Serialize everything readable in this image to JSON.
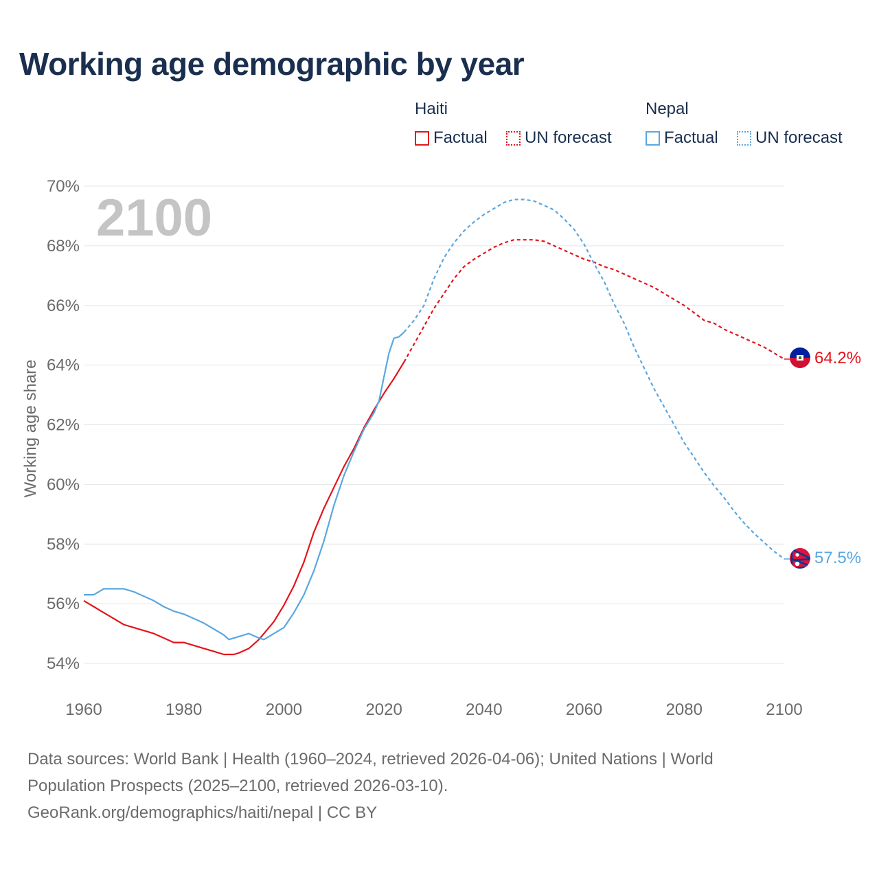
{
  "title": "Working age demographic by year",
  "legend": {
    "groups": [
      {
        "name": "Haiti",
        "factual_label": "Factual",
        "forecast_label": "UN forecast",
        "color": "#e3141b"
      },
      {
        "name": "Nepal",
        "factual_label": "Factual",
        "forecast_label": "UN forecast",
        "color": "#5aa7e0"
      }
    ]
  },
  "year_watermark": "2100",
  "footer": {
    "line1": "Data sources: World Bank | Health (1960–2024, retrieved 2026-04-06); United Nations | World",
    "line2": "Population Prospects (2025–2100, retrieved 2026-03-10).",
    "line3": "GeoRank.org/demographics/haiti/nepal | CC BY"
  },
  "chart_data": {
    "type": "line",
    "title": "Working age demographic by year",
    "xlabel": "",
    "ylabel": "Working age share",
    "xlim": [
      1960,
      2100
    ],
    "ylim": [
      54,
      70
    ],
    "x_ticks": [
      1960,
      1980,
      2000,
      2020,
      2040,
      2060,
      2080,
      2100
    ],
    "y_ticks": [
      54,
      56,
      58,
      60,
      62,
      64,
      66,
      68,
      70
    ],
    "y_tick_suffix": "%",
    "grid": true,
    "forecast_start_year": 2024,
    "series": [
      {
        "name": "Haiti",
        "color": "#e3141b",
        "end_label": "64.2%",
        "flag": "haiti-flag",
        "points": [
          [
            1960,
            56.1
          ],
          [
            1962,
            55.9
          ],
          [
            1964,
            55.7
          ],
          [
            1966,
            55.5
          ],
          [
            1968,
            55.3
          ],
          [
            1970,
            55.2
          ],
          [
            1972,
            55.1
          ],
          [
            1974,
            55.0
          ],
          [
            1976,
            54.85
          ],
          [
            1978,
            54.7
          ],
          [
            1980,
            54.7
          ],
          [
            1982,
            54.6
          ],
          [
            1984,
            54.5
          ],
          [
            1986,
            54.4
          ],
          [
            1988,
            54.3
          ],
          [
            1990,
            54.3
          ],
          [
            1991,
            54.35
          ],
          [
            1993,
            54.5
          ],
          [
            1995,
            54.8
          ],
          [
            1998,
            55.4
          ],
          [
            2000,
            55.95
          ],
          [
            2002,
            56.6
          ],
          [
            2004,
            57.4
          ],
          [
            2006,
            58.4
          ],
          [
            2008,
            59.2
          ],
          [
            2010,
            59.9
          ],
          [
            2012,
            60.6
          ],
          [
            2014,
            61.2
          ],
          [
            2016,
            61.9
          ],
          [
            2018,
            62.5
          ],
          [
            2020,
            63.05
          ],
          [
            2022,
            63.55
          ],
          [
            2024,
            64.1
          ],
          [
            2026,
            64.7
          ],
          [
            2028,
            65.3
          ],
          [
            2030,
            65.9
          ],
          [
            2032,
            66.4
          ],
          [
            2034,
            66.9
          ],
          [
            2036,
            67.3
          ],
          [
            2038,
            67.55
          ],
          [
            2040,
            67.75
          ],
          [
            2042,
            67.95
          ],
          [
            2044,
            68.1
          ],
          [
            2046,
            68.2
          ],
          [
            2048,
            68.2
          ],
          [
            2050,
            68.2
          ],
          [
            2052,
            68.15
          ],
          [
            2054,
            68.0
          ],
          [
            2056,
            67.85
          ],
          [
            2058,
            67.7
          ],
          [
            2060,
            67.55
          ],
          [
            2062,
            67.45
          ],
          [
            2064,
            67.3
          ],
          [
            2066,
            67.2
          ],
          [
            2068,
            67.05
          ],
          [
            2070,
            66.9
          ],
          [
            2072,
            66.75
          ],
          [
            2074,
            66.6
          ],
          [
            2076,
            66.4
          ],
          [
            2078,
            66.2
          ],
          [
            2080,
            66.0
          ],
          [
            2082,
            65.75
          ],
          [
            2084,
            65.5
          ],
          [
            2086,
            65.4
          ],
          [
            2088,
            65.2
          ],
          [
            2090,
            65.05
          ],
          [
            2092,
            64.9
          ],
          [
            2094,
            64.75
          ],
          [
            2096,
            64.6
          ],
          [
            2098,
            64.4
          ],
          [
            2100,
            64.2
          ]
        ]
      },
      {
        "name": "Nepal",
        "color": "#5aa7e0",
        "end_label": "57.5%",
        "flag": "nepal-flag",
        "points": [
          [
            1960,
            56.3
          ],
          [
            1962,
            56.3
          ],
          [
            1964,
            56.5
          ],
          [
            1966,
            56.5
          ],
          [
            1968,
            56.5
          ],
          [
            1970,
            56.4
          ],
          [
            1972,
            56.25
          ],
          [
            1974,
            56.1
          ],
          [
            1976,
            55.9
          ],
          [
            1978,
            55.75
          ],
          [
            1980,
            55.65
          ],
          [
            1982,
            55.5
          ],
          [
            1984,
            55.35
          ],
          [
            1986,
            55.15
          ],
          [
            1988,
            54.95
          ],
          [
            1989,
            54.8
          ],
          [
            1991,
            54.9
          ],
          [
            1993,
            55.0
          ],
          [
            1995,
            54.85
          ],
          [
            1996,
            54.8
          ],
          [
            1998,
            55.0
          ],
          [
            2000,
            55.2
          ],
          [
            2002,
            55.7
          ],
          [
            2004,
            56.3
          ],
          [
            2006,
            57.1
          ],
          [
            2008,
            58.1
          ],
          [
            2010,
            59.3
          ],
          [
            2012,
            60.3
          ],
          [
            2014,
            61.1
          ],
          [
            2016,
            61.85
          ],
          [
            2018,
            62.4
          ],
          [
            2019,
            62.8
          ],
          [
            2020,
            63.6
          ],
          [
            2021,
            64.4
          ],
          [
            2022,
            64.9
          ],
          [
            2023,
            64.95
          ],
          [
            2024,
            65.1
          ],
          [
            2026,
            65.5
          ],
          [
            2028,
            66.0
          ],
          [
            2030,
            66.9
          ],
          [
            2032,
            67.6
          ],
          [
            2034,
            68.1
          ],
          [
            2036,
            68.5
          ],
          [
            2038,
            68.8
          ],
          [
            2040,
            69.05
          ],
          [
            2042,
            69.25
          ],
          [
            2044,
            69.45
          ],
          [
            2046,
            69.55
          ],
          [
            2048,
            69.55
          ],
          [
            2050,
            69.5
          ],
          [
            2052,
            69.35
          ],
          [
            2054,
            69.2
          ],
          [
            2056,
            68.9
          ],
          [
            2058,
            68.55
          ],
          [
            2060,
            68.05
          ],
          [
            2062,
            67.4
          ],
          [
            2064,
            66.8
          ],
          [
            2066,
            66.05
          ],
          [
            2068,
            65.4
          ],
          [
            2070,
            64.6
          ],
          [
            2072,
            63.9
          ],
          [
            2074,
            63.2
          ],
          [
            2076,
            62.6
          ],
          [
            2078,
            62.0
          ],
          [
            2080,
            61.4
          ],
          [
            2082,
            60.9
          ],
          [
            2084,
            60.4
          ],
          [
            2086,
            59.95
          ],
          [
            2088,
            59.55
          ],
          [
            2090,
            59.1
          ],
          [
            2092,
            58.7
          ],
          [
            2094,
            58.35
          ],
          [
            2096,
            58.05
          ],
          [
            2098,
            57.75
          ],
          [
            2100,
            57.5
          ]
        ]
      }
    ]
  }
}
